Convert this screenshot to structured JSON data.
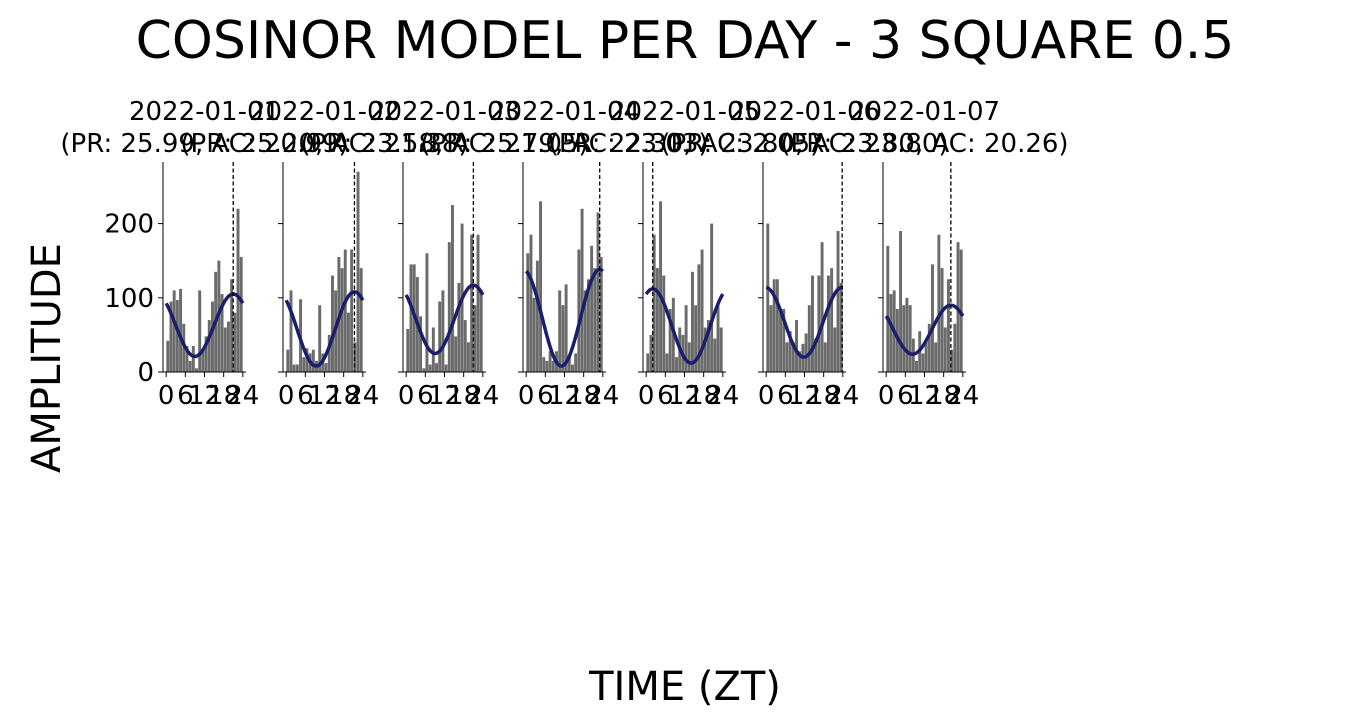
{
  "figure": {
    "title": "COSINOR MODEL PER DAY - 3 SQUARE 0.5",
    "xlabel": "TIME (ZT)",
    "ylabel": "AMPLITUDE"
  },
  "style": {
    "bar_color": "#6b6b6b",
    "curve_color": "#1b1f6b",
    "axis_color": "#000000",
    "acrophase_line": "dashed black vertical line"
  },
  "chart_data": [
    {
      "type": "bar",
      "title_line1": "2022-01-01",
      "title_line2": "(PR: 25.99, AC: 20.99)",
      "x_ticks": [
        0,
        6,
        12,
        18,
        24
      ],
      "y_ticks": [
        0,
        100,
        200
      ],
      "ylim": [
        0,
        283
      ],
      "xlim": [
        -1,
        25
      ],
      "bar_values": [
        42,
        95,
        110,
        97,
        112,
        65,
        35,
        15,
        35,
        5,
        110,
        30,
        48,
        70,
        95,
        135,
        150,
        105,
        60,
        68,
        125,
        80,
        220,
        155
      ],
      "cosinor": {
        "mesor": 63,
        "amplitude": 42,
        "acrophase_zt": 20.99
      },
      "acrophase_zt": 20.99
    },
    {
      "type": "bar",
      "title_line1": "2022-01-02",
      "title_line2": "(PR: 25.20, AC: 21.38)",
      "x_ticks": [
        0,
        6,
        12,
        18,
        24
      ],
      "y_ticks": [
        0,
        100,
        200
      ],
      "ylim": [
        0,
        283
      ],
      "xlim": [
        -1,
        25
      ],
      "bar_values": [
        30,
        110,
        10,
        10,
        98,
        20,
        32,
        25,
        30,
        15,
        90,
        25,
        12,
        50,
        130,
        110,
        155,
        140,
        165,
        80,
        165,
        40,
        270,
        140
      ],
      "cosinor": {
        "mesor": 58,
        "amplitude": 50,
        "acrophase_zt": 21.38
      },
      "acrophase_zt": 21.38
    },
    {
      "type": "bar",
      "title_line1": "2022-01-03",
      "title_line2": "(PR: 23.58, AC: 21.05)",
      "x_ticks": [
        0,
        6,
        12,
        18,
        24
      ],
      "y_ticks": [
        0,
        100,
        200
      ],
      "ylim": [
        0,
        283
      ],
      "xlim": [
        -1,
        25
      ],
      "bar_values": [
        58,
        145,
        145,
        128,
        75,
        5,
        160,
        10,
        60,
        12,
        95,
        110,
        10,
        175,
        225,
        48,
        120,
        200,
        70,
        40,
        185,
        90,
        185,
        110
      ],
      "cosinor": {
        "mesor": 71,
        "amplitude": 46,
        "acrophase_zt": 21.05
      },
      "acrophase_zt": 21.05
    },
    {
      "type": "bar",
      "title_line1": "2022-01-04",
      "title_line2": "(PR: 25.79, AC: 23.03)",
      "x_ticks": [
        0,
        6,
        12,
        18,
        24
      ],
      "y_ticks": [
        0,
        100,
        200
      ],
      "ylim": [
        0,
        283
      ],
      "xlim": [
        -1,
        25
      ],
      "bar_values": [
        160,
        185,
        100,
        150,
        230,
        20,
        15,
        28,
        15,
        28,
        110,
        90,
        118,
        20,
        10,
        25,
        165,
        220,
        110,
        125,
        170,
        140,
        215,
        155
      ],
      "cosinor": {
        "mesor": 73,
        "amplitude": 65,
        "acrophase_zt": 23.03
      },
      "acrophase_zt": 23.03
    },
    {
      "type": "bar",
      "title_line1": "2022-01-05",
      "title_line2": "(PR: 22.30, AC: 2.05)",
      "x_ticks": [
        0,
        6,
        12,
        18,
        24
      ],
      "y_ticks": [
        0,
        100,
        200
      ],
      "ylim": [
        0,
        283
      ],
      "xlim": [
        -1,
        25
      ],
      "bar_values": [
        25,
        50,
        185,
        140,
        230,
        130,
        25,
        85,
        100,
        20,
        60,
        50,
        90,
        40,
        135,
        90,
        145,
        165,
        60,
        70,
        200,
        45,
        90,
        60
      ],
      "cosinor": {
        "mesor": 62,
        "amplitude": 50,
        "acrophase_zt": 2.05
      },
      "acrophase_zt": 2.05
    },
    {
      "type": "bar",
      "title_line1": "2022-01-06",
      "title_line2": "(PR: 23.80, AC: 23.80)",
      "x_ticks": [
        0,
        6,
        12,
        18,
        24
      ],
      "y_ticks": [
        0,
        100,
        200
      ],
      "ylim": [
        0,
        283
      ],
      "xlim": [
        -1,
        25
      ],
      "bar_values": [
        200,
        90,
        125,
        125,
        80,
        85,
        40,
        55,
        40,
        70,
        28,
        38,
        52,
        90,
        130,
        45,
        130,
        175,
        40,
        130,
        140,
        60,
        190,
        120
      ],
      "cosinor": {
        "mesor": 67,
        "amplitude": 47,
        "acrophase_zt": 23.8
      },
      "acrophase_zt": 23.8
    },
    {
      "type": "bar",
      "title_line1": "2022-01-07",
      "title_line2": "(PR: 23.80, AC: 20.26)",
      "x_ticks": [
        0,
        6,
        12,
        18,
        24
      ],
      "y_ticks": [
        0,
        100,
        200
      ],
      "ylim": [
        0,
        283
      ],
      "xlim": [
        -1,
        25
      ],
      "bar_values": [
        170,
        105,
        110,
        85,
        190,
        90,
        100,
        90,
        45,
        15,
        55,
        25,
        40,
        65,
        145,
        40,
        185,
        140,
        60,
        125,
        30,
        65,
        175,
        165
      ],
      "cosinor": {
        "mesor": 57,
        "amplitude": 33,
        "acrophase_zt": 20.26
      },
      "acrophase_zt": 20.26
    }
  ]
}
